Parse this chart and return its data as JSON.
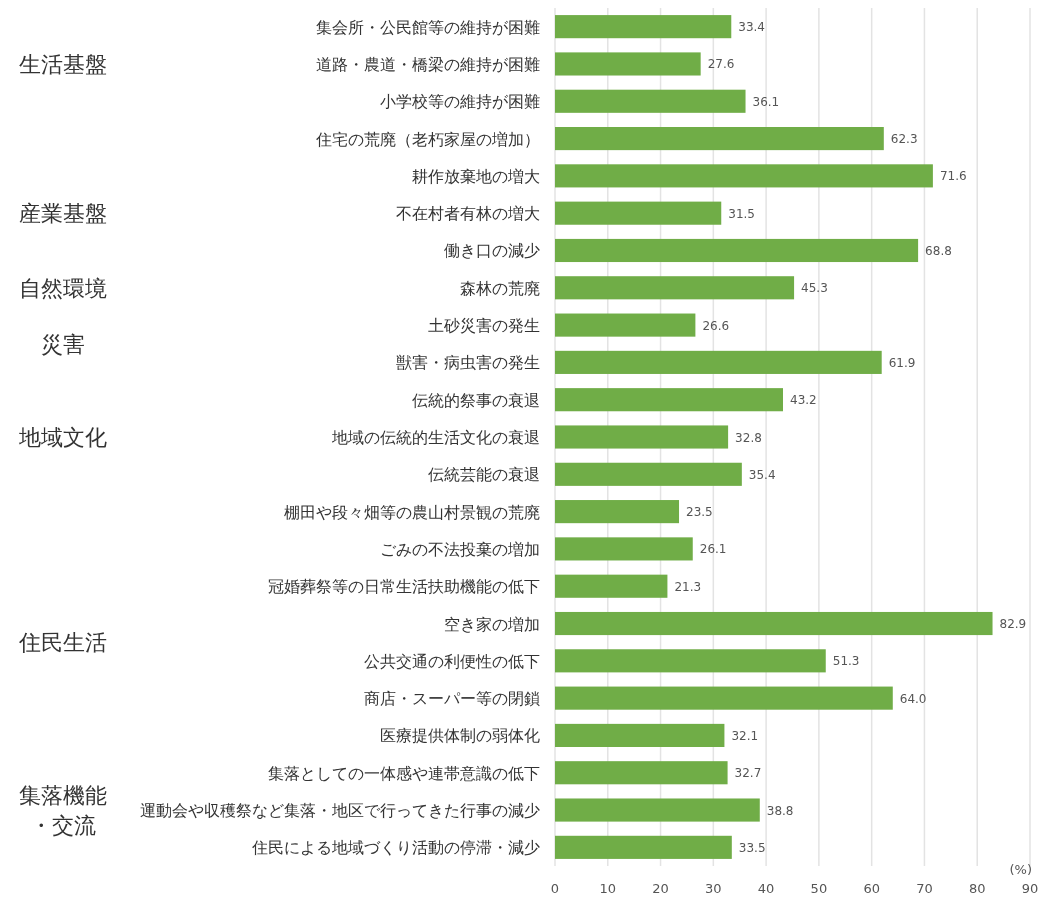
{
  "chart_data": {
    "type": "bar",
    "orientation": "horizontal",
    "xlabel": "(%)",
    "categories": [
      "集会所・公民館等の維持が困難",
      "道路・農道・橋梁の維持が困難",
      "小学校等の維持が困難",
      "住宅の荒廃（老朽家屋の増加）",
      "耕作放棄地の増大",
      "不在村者有林の増大",
      "働き口の減少",
      "森林の荒廃",
      "土砂災害の発生",
      "獣害・病虫害の発生",
      "伝統的祭事の衰退",
      "地域の伝統的生活文化の衰退",
      "伝統芸能の衰退",
      "棚田や段々畑等の農山村景観の荒廃",
      "ごみの不法投棄の増加",
      "冠婚葬祭等の日常生活扶助機能の低下",
      "空き家の増加",
      "公共交通の利便性の低下",
      "商店・スーパー等の閉鎖",
      "医療提供体制の弱体化",
      "集落としての一体感や連帯意識の低下",
      "運動会や収穫祭など集落・地区で行ってきた行事の減少",
      "住民による地域づくり活動の停滞・減少"
    ],
    "values": [
      33.4,
      27.6,
      36.1,
      62.3,
      71.6,
      31.5,
      68.8,
      45.3,
      26.6,
      61.9,
      43.2,
      32.8,
      35.4,
      23.5,
      26.1,
      21.3,
      82.9,
      51.3,
      64.0,
      32.1,
      32.7,
      38.8,
      33.5
    ],
    "value_labels": [
      "33.4",
      "27.6",
      "36.1",
      "62.3",
      "71.6",
      "31.5",
      "68.8",
      "45.3",
      "26.6",
      "61.9",
      "43.2",
      "32.8",
      "35.4",
      "23.5",
      "26.1",
      "21.3",
      "82.9",
      "51.3",
      "64.0",
      "32.1",
      "32.7",
      "38.8",
      "33.5"
    ],
    "color": "#70ad47",
    "xlim": [
      0,
      90
    ],
    "xticks": [
      0,
      10,
      20,
      30,
      40,
      50,
      60,
      70,
      80,
      90
    ],
    "grid": "x",
    "annotations": [
      "生活基盤",
      "産業基盤",
      "自然環境",
      "災害",
      "地域文化",
      "住民生活",
      "集落機能・交流"
    ]
  }
}
